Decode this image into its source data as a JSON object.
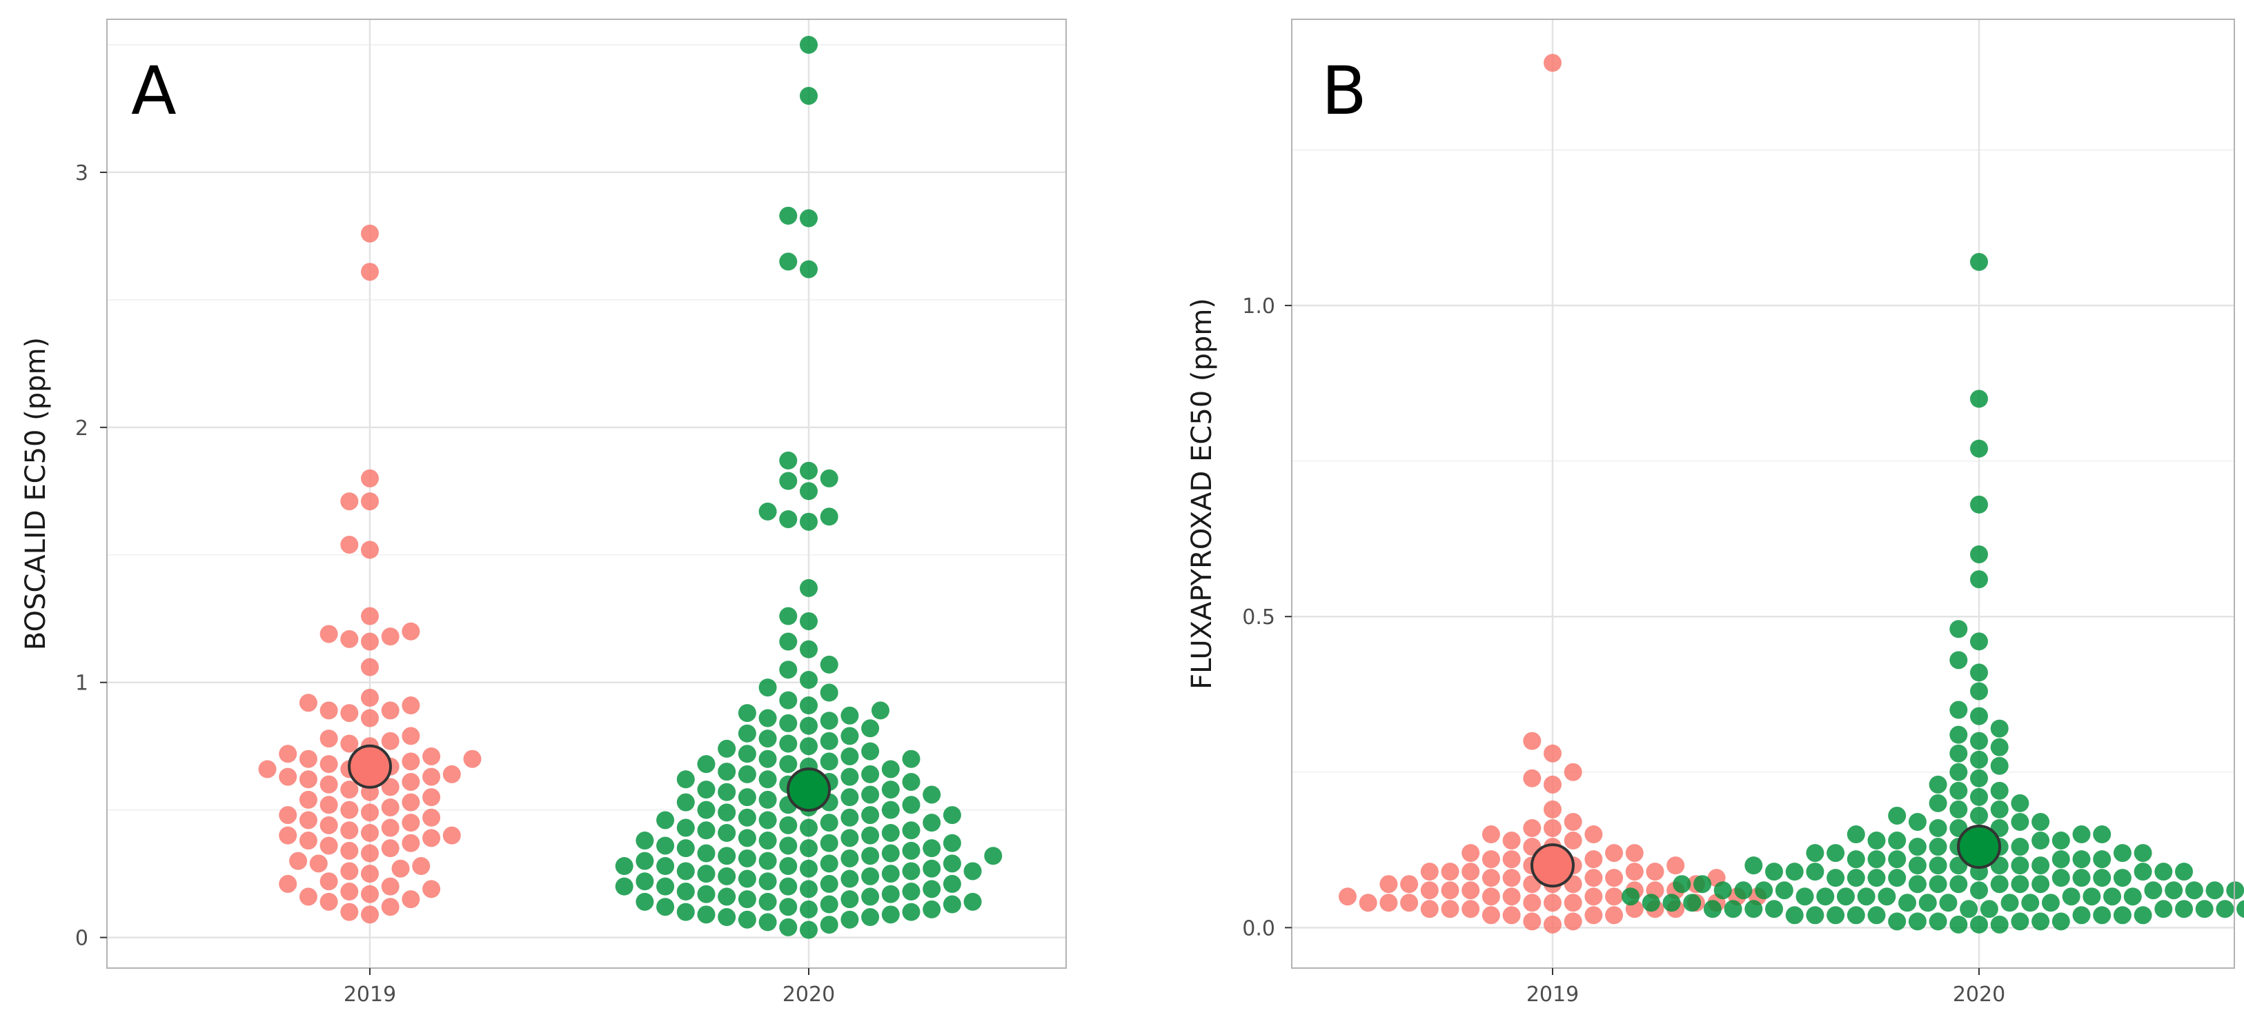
{
  "chart_data": [
    {
      "type": "scatter",
      "subtype": "beeswarm",
      "panel_label": "A",
      "ylabel": "BOSCALID EC50 (ppm)",
      "xlabel": "",
      "categories": [
        "2019",
        "2020"
      ],
      "y_ticks": [
        "0",
        "1",
        "2",
        "3"
      ],
      "ylim": [
        -0.12,
        3.6
      ],
      "grid": true,
      "series": [
        {
          "name": "2019",
          "color": "#f8766d",
          "mean": 0.67,
          "values": [
            2.76,
            2.61,
            1.8,
            1.71,
            1.71,
            1.54,
            1.52,
            1.26,
            1.2,
            1.19,
            1.18,
            1.17,
            1.16,
            1.06,
            0.94,
            0.92,
            0.91,
            0.89,
            0.89,
            0.88,
            0.86,
            0.79,
            0.78,
            0.77,
            0.76,
            0.75,
            0.72,
            0.71,
            0.7,
            0.7,
            0.69,
            0.68,
            0.67,
            0.66,
            0.66,
            0.65,
            0.64,
            0.63,
            0.63,
            0.62,
            0.61,
            0.6,
            0.59,
            0.58,
            0.57,
            0.55,
            0.54,
            0.53,
            0.52,
            0.51,
            0.5,
            0.49,
            0.48,
            0.47,
            0.46,
            0.45,
            0.44,
            0.43,
            0.42,
            0.41,
            0.4,
            0.4,
            0.39,
            0.38,
            0.37,
            0.36,
            0.35,
            0.34,
            0.33,
            0.3,
            0.29,
            0.28,
            0.27,
            0.26,
            0.25,
            0.22,
            0.21,
            0.2,
            0.19,
            0.18,
            0.17,
            0.16,
            0.15,
            0.14,
            0.12,
            0.1,
            0.09
          ]
        },
        {
          "name": "2020",
          "color": "#00913a",
          "mean": 0.58,
          "values": [
            3.5,
            3.3,
            2.83,
            2.82,
            2.65,
            2.62,
            1.87,
            1.83,
            1.8,
            1.79,
            1.75,
            1.67,
            1.65,
            1.64,
            1.63,
            1.37,
            1.26,
            1.24,
            1.16,
            1.13,
            1.07,
            1.05,
            1.01,
            0.98,
            0.96,
            0.93,
            0.91,
            0.89,
            0.88,
            0.87,
            0.86,
            0.85,
            0.84,
            0.83,
            0.82,
            0.8,
            0.79,
            0.78,
            0.77,
            0.76,
            0.75,
            0.74,
            0.73,
            0.72,
            0.71,
            0.7,
            0.7,
            0.69,
            0.68,
            0.68,
            0.67,
            0.66,
            0.65,
            0.64,
            0.64,
            0.63,
            0.62,
            0.61,
            0.61,
            0.6,
            0.59,
            0.58,
            0.57,
            0.56,
            0.56,
            0.55,
            0.54,
            0.53,
            0.53,
            0.52,
            0.51,
            0.5,
            0.5,
            0.49,
            0.48,
            0.47,
            0.46,
            0.46,
            0.45,
            0.44,
            0.43,
            0.43,
            0.42,
            0.41,
            0.4,
            0.39,
            0.39,
            0.38,
            0.37,
            0.36,
            0.35,
            0.35,
            0.34,
            0.33,
            0.32,
            0.32,
            0.31,
            0.3,
            0.29,
            0.28,
            0.28,
            0.27,
            0.26,
            0.25,
            0.25,
            0.24,
            0.23,
            0.22,
            0.21,
            0.2,
            0.2,
            0.19,
            0.18,
            0.17,
            0.17,
            0.16,
            0.15,
            0.14,
            0.14,
            0.13,
            0.12,
            0.11,
            0.1,
            0.09,
            0.08,
            0.07,
            0.06,
            0.05,
            0.04,
            0.03,
            0.35,
            0.33,
            0.3,
            0.28,
            0.26,
            0.24,
            0.22,
            0.2,
            0.18,
            0.16,
            0.14,
            0.12,
            0.1,
            0.08,
            0.55,
            0.52,
            0.48,
            0.45,
            0.42,
            0.38,
            0.36,
            0.32,
            0.29,
            0.26,
            0.23,
            0.19,
            0.15,
            0.11,
            0.07,
            0.62,
            0.58,
            0.47,
            0.41,
            0.37,
            0.31,
            0.27,
            0.21,
            0.13,
            0.09
          ]
        }
      ]
    },
    {
      "type": "scatter",
      "subtype": "beeswarm",
      "panel_label": "B",
      "ylabel": "FLUXAPYROXAD EC50 (ppm)",
      "xlabel": "",
      "categories": [
        "2019",
        "2020"
      ],
      "y_ticks": [
        "0.0",
        "0.5",
        "1.0"
      ],
      "ylim": [
        -0.065,
        1.46
      ],
      "grid": true,
      "series": [
        {
          "name": "2019",
          "color": "#f8766d",
          "mean": 0.1,
          "values": [
            1.39,
            0.3,
            0.28,
            0.25,
            0.24,
            0.23,
            0.19,
            0.17,
            0.16,
            0.16,
            0.15,
            0.15,
            0.14,
            0.14,
            0.13,
            0.13,
            0.12,
            0.12,
            0.12,
            0.11,
            0.11,
            0.11,
            0.1,
            0.1,
            0.1,
            0.1,
            0.09,
            0.09,
            0.09,
            0.09,
            0.09,
            0.08,
            0.08,
            0.08,
            0.08,
            0.08,
            0.07,
            0.07,
            0.07,
            0.07,
            0.07,
            0.07,
            0.06,
            0.06,
            0.06,
            0.06,
            0.06,
            0.06,
            0.05,
            0.05,
            0.05,
            0.05,
            0.05,
            0.05,
            0.05,
            0.04,
            0.04,
            0.04,
            0.04,
            0.04,
            0.04,
            0.04,
            0.04,
            0.03,
            0.03,
            0.03,
            0.03,
            0.03,
            0.03,
            0.02,
            0.02,
            0.02,
            0.02,
            0.01,
            0.01,
            0.005
          ]
        },
        {
          "name": "2020",
          "color": "#00913a",
          "mean": 0.13,
          "values": [
            1.07,
            0.85,
            0.77,
            0.68,
            0.6,
            0.56,
            0.48,
            0.46,
            0.43,
            0.41,
            0.38,
            0.35,
            0.34,
            0.32,
            0.31,
            0.3,
            0.29,
            0.28,
            0.27,
            0.26,
            0.25,
            0.24,
            0.23,
            0.22,
            0.22,
            0.21,
            0.2,
            0.2,
            0.19,
            0.19,
            0.18,
            0.18,
            0.17,
            0.17,
            0.17,
            0.16,
            0.16,
            0.16,
            0.15,
            0.15,
            0.15,
            0.15,
            0.14,
            0.14,
            0.14,
            0.14,
            0.13,
            0.13,
            0.13,
            0.13,
            0.13,
            0.12,
            0.12,
            0.12,
            0.12,
            0.12,
            0.11,
            0.11,
            0.11,
            0.11,
            0.11,
            0.11,
            0.1,
            0.1,
            0.1,
            0.1,
            0.1,
            0.1,
            0.1,
            0.09,
            0.09,
            0.09,
            0.09,
            0.09,
            0.09,
            0.09,
            0.08,
            0.08,
            0.08,
            0.08,
            0.08,
            0.08,
            0.08,
            0.08,
            0.07,
            0.07,
            0.07,
            0.07,
            0.07,
            0.07,
            0.07,
            0.07,
            0.07,
            0.06,
            0.06,
            0.06,
            0.06,
            0.06,
            0.06,
            0.06,
            0.06,
            0.06,
            0.06,
            0.05,
            0.05,
            0.05,
            0.05,
            0.05,
            0.05,
            0.05,
            0.05,
            0.05,
            0.05,
            0.05,
            0.04,
            0.04,
            0.04,
            0.04,
            0.04,
            0.04,
            0.04,
            0.04,
            0.04,
            0.04,
            0.04,
            0.03,
            0.03,
            0.03,
            0.03,
            0.03,
            0.03,
            0.03,
            0.03,
            0.03,
            0.03,
            0.03,
            0.02,
            0.02,
            0.02,
            0.02,
            0.02,
            0.02,
            0.02,
            0.02,
            0.02,
            0.01,
            0.01,
            0.01,
            0.01,
            0.01,
            0.01,
            0.005,
            0.005,
            0.005
          ]
        }
      ]
    }
  ]
}
